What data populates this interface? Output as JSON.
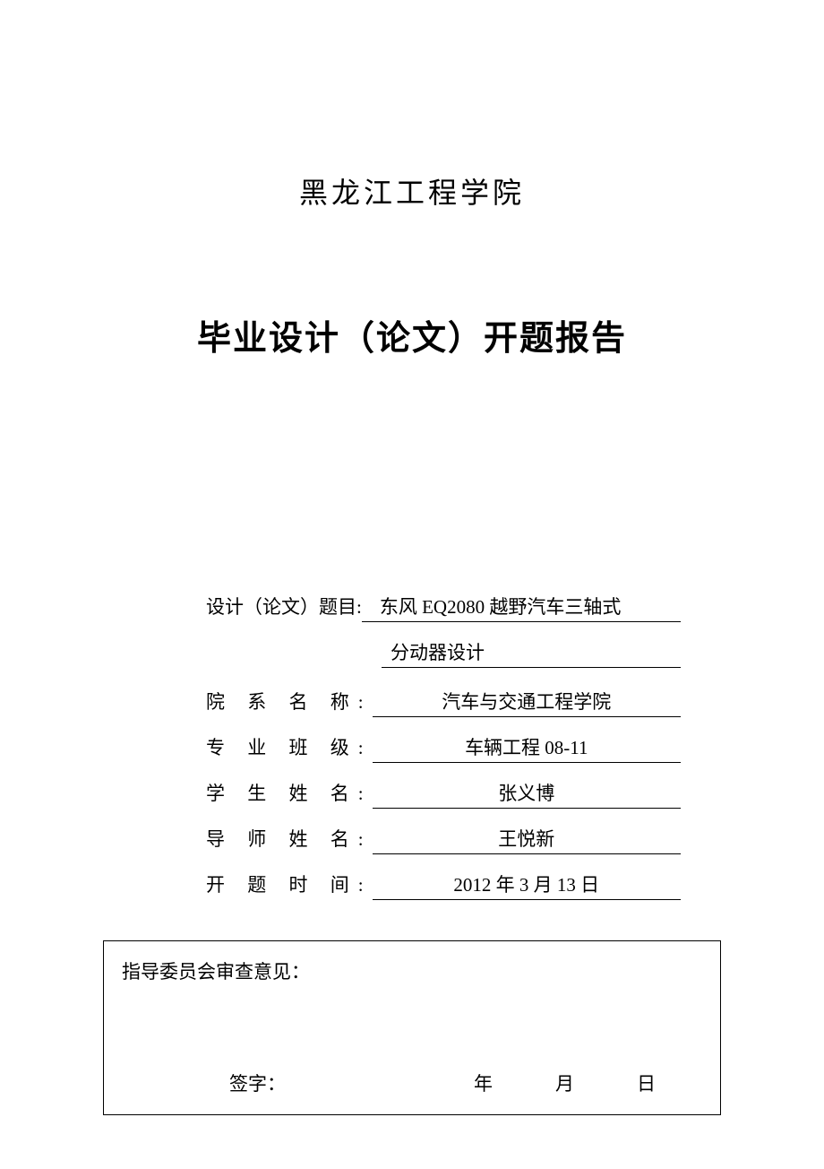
{
  "university_name": "黑龙江工程学院",
  "main_title": "毕业设计（论文）开题报告",
  "form": {
    "topic_label": "设计（论文）题目:",
    "topic_value_line1": "东风 EQ2080 越野汽车三轴式",
    "topic_value_line2": "分动器设计",
    "dept_label": "院 系 名 称:",
    "dept_value": "汽车与交通工程学院",
    "class_label": "专 业 班 级:",
    "class_value": "车辆工程 08-11",
    "student_label": "学 生 姓 名:",
    "student_value": "张义博",
    "advisor_label": "导 师 姓 名:",
    "advisor_value": "王悦新",
    "date_label": "开 题 时 间:",
    "date_value": "2012 年 3 月 13 日"
  },
  "review": {
    "title": "指导委员会审查意见：",
    "signature_label": "签字：",
    "year_label": "年",
    "month_label": "月",
    "day_label": "日"
  },
  "colors": {
    "background": "#ffffff",
    "text": "#000000",
    "border": "#000000"
  },
  "typography": {
    "university_fontsize": 32,
    "title_fontsize": 38,
    "body_fontsize": 21
  }
}
